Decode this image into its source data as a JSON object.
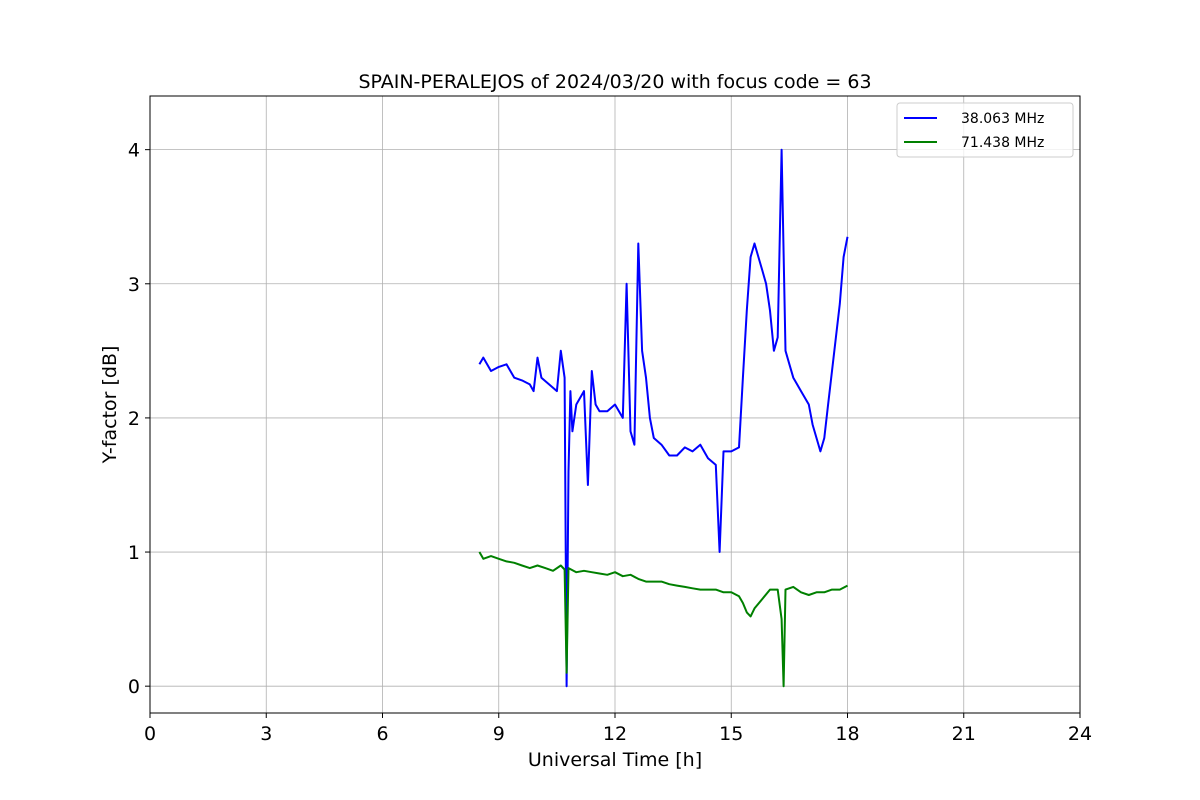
{
  "chart_data": {
    "type": "line",
    "title": "SPAIN-PERALEJOS of 2024/03/20 with focus code = 63",
    "xlabel": "Universal Time [h]",
    "ylabel": "Y-factor [dB]",
    "xlim": [
      0,
      24
    ],
    "ylim": [
      -0.2,
      4.4
    ],
    "xticks": [
      0,
      3,
      6,
      9,
      12,
      15,
      18,
      21,
      24
    ],
    "yticks": [
      0,
      1,
      2,
      3,
      4
    ],
    "grid": true,
    "legend_position": "top-right",
    "series": [
      {
        "name": "38.063 MHz",
        "color": "#0000ff",
        "x": [
          8.5,
          8.6,
          8.8,
          9.0,
          9.2,
          9.4,
          9.6,
          9.8,
          9.9,
          10.0,
          10.1,
          10.3,
          10.5,
          10.6,
          10.7,
          10.75,
          10.8,
          10.85,
          10.9,
          11.0,
          11.2,
          11.3,
          11.4,
          11.5,
          11.6,
          11.8,
          12.0,
          12.2,
          12.3,
          12.4,
          12.5,
          12.6,
          12.7,
          12.8,
          12.9,
          13.0,
          13.2,
          13.4,
          13.6,
          13.8,
          14.0,
          14.2,
          14.4,
          14.6,
          14.7,
          14.8,
          15.0,
          15.2,
          15.3,
          15.4,
          15.5,
          15.6,
          15.7,
          15.8,
          15.9,
          16.0,
          16.1,
          16.2,
          16.3,
          16.4,
          16.5,
          16.6,
          16.8,
          17.0,
          17.1,
          17.2,
          17.3,
          17.4,
          17.5,
          17.6,
          17.7,
          17.8,
          17.9,
          18.0
        ],
        "y": [
          2.4,
          2.45,
          2.35,
          2.38,
          2.4,
          2.3,
          2.28,
          2.25,
          2.2,
          2.45,
          2.3,
          2.25,
          2.2,
          2.5,
          2.3,
          0.0,
          1.6,
          2.2,
          1.9,
          2.1,
          2.2,
          1.5,
          2.35,
          2.1,
          2.05,
          2.05,
          2.1,
          2.0,
          3.0,
          1.9,
          1.8,
          3.3,
          2.5,
          2.3,
          2.0,
          1.85,
          1.8,
          1.72,
          1.72,
          1.78,
          1.75,
          1.8,
          1.7,
          1.65,
          1.0,
          1.75,
          1.75,
          1.78,
          2.3,
          2.8,
          3.2,
          3.3,
          3.2,
          3.1,
          3.0,
          2.8,
          2.5,
          2.6,
          4.0,
          2.5,
          2.4,
          2.3,
          2.2,
          2.1,
          1.95,
          1.85,
          1.75,
          1.85,
          2.1,
          2.35,
          2.6,
          2.85,
          3.2,
          3.35
        ]
      },
      {
        "name": "71.438 MHz",
        "color": "#008000",
        "x": [
          8.5,
          8.6,
          8.8,
          9.0,
          9.2,
          9.4,
          9.6,
          9.8,
          10.0,
          10.2,
          10.4,
          10.6,
          10.7,
          10.75,
          10.8,
          11.0,
          11.2,
          11.4,
          11.6,
          11.8,
          12.0,
          12.2,
          12.4,
          12.6,
          12.8,
          13.0,
          13.2,
          13.4,
          13.6,
          13.8,
          14.0,
          14.2,
          14.4,
          14.6,
          14.8,
          15.0,
          15.2,
          15.3,
          15.4,
          15.5,
          15.6,
          15.8,
          16.0,
          16.2,
          16.3,
          16.35,
          16.4,
          16.6,
          16.8,
          17.0,
          17.2,
          17.4,
          17.6,
          17.8,
          18.0
        ],
        "y": [
          1.0,
          0.95,
          0.97,
          0.95,
          0.93,
          0.92,
          0.9,
          0.88,
          0.9,
          0.88,
          0.86,
          0.9,
          0.87,
          0.1,
          0.88,
          0.85,
          0.86,
          0.85,
          0.84,
          0.83,
          0.85,
          0.82,
          0.83,
          0.8,
          0.78,
          0.78,
          0.78,
          0.76,
          0.75,
          0.74,
          0.73,
          0.72,
          0.72,
          0.72,
          0.7,
          0.7,
          0.67,
          0.62,
          0.55,
          0.52,
          0.58,
          0.65,
          0.72,
          0.72,
          0.5,
          0.0,
          0.72,
          0.74,
          0.7,
          0.68,
          0.7,
          0.7,
          0.72,
          0.72,
          0.75
        ]
      }
    ]
  }
}
